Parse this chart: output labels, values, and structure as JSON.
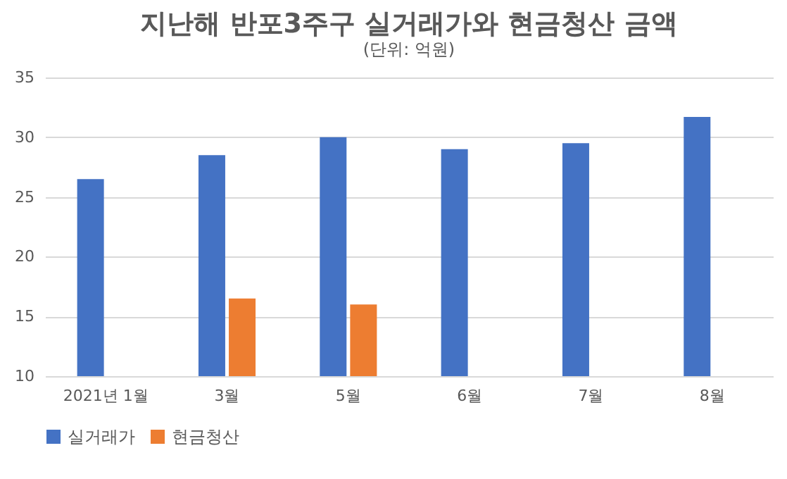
{
  "chart_data": {
    "type": "bar",
    "title": "지난해 반포3주구 실거래가와 현금청산 금액",
    "subtitle": "(단위: 억원)",
    "categories": [
      "2021년 1월",
      "3월",
      "5월",
      "6월",
      "7월",
      "8월"
    ],
    "series": [
      {
        "name": "실거래가",
        "color": "#4472c4",
        "values": [
          26.5,
          28.5,
          30,
          29,
          29.5,
          31.7
        ]
      },
      {
        "name": "현금청산",
        "color": "#ed7d31",
        "values": [
          null,
          16.5,
          16,
          null,
          null,
          null
        ]
      }
    ],
    "ylim": [
      10,
      35
    ],
    "yticks": [
      10,
      15,
      20,
      25,
      30,
      35
    ],
    "grid": "y",
    "legend": "bottom"
  }
}
